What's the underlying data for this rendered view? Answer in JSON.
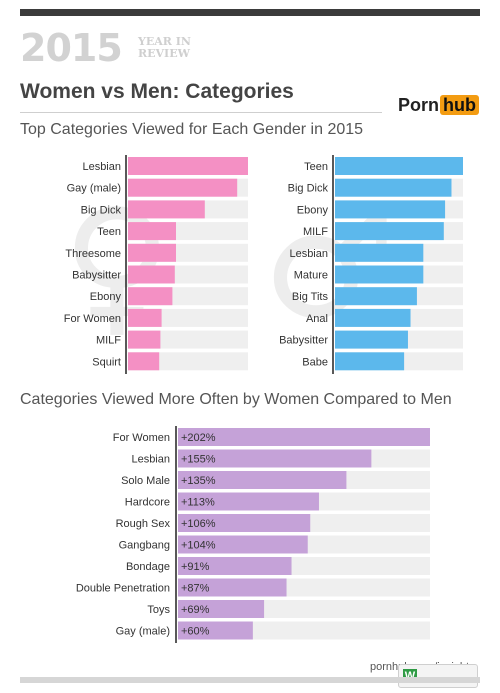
{
  "header": {
    "year": "2015",
    "year_in_review": "YEAR IN REVIEW",
    "title": "Women vs Men: Categories",
    "logo_a": "Porn",
    "logo_b": "hub",
    "brand_color": "#f39c12"
  },
  "section1": {
    "title": "Top Categories Viewed for Each Gender in 2015"
  },
  "section2": {
    "title": "Categories Viewed More Often by Women Compared to Men"
  },
  "footer": {
    "url": "pornhub.com/insights",
    "badge_text": "W"
  },
  "chart_data": [
    {
      "type": "bar",
      "orientation": "horizontal",
      "series_label_hint": "Women",
      "categories": [
        "Lesbian",
        "Gay (male)",
        "Big Dick",
        "Teen",
        "Threesome",
        "Babysitter",
        "Ebony",
        "For Women",
        "MILF",
        "Squirt"
      ],
      "values": [
        100,
        91,
        64,
        40,
        40,
        39,
        37,
        28,
        27,
        26
      ],
      "xlim": [
        0,
        100
      ],
      "color": "#f490c4",
      "track_color": "#efefef"
    },
    {
      "type": "bar",
      "orientation": "horizontal",
      "series_label_hint": "Men",
      "categories": [
        "Teen",
        "Big Dick",
        "Ebony",
        "MILF",
        "Lesbian",
        "Mature",
        "Big Tits",
        "Anal",
        "Babysitter",
        "Babe"
      ],
      "values": [
        100,
        91,
        86,
        85,
        69,
        69,
        64,
        59,
        57,
        54
      ],
      "xlim": [
        0,
        100
      ],
      "color": "#5cb8ec",
      "track_color": "#efefef"
    },
    {
      "type": "bar",
      "orientation": "horizontal",
      "categories": [
        "For Women",
        "Lesbian",
        "Solo Male",
        "Hardcore",
        "Rough Sex",
        "Gangbang",
        "Bondage",
        "Double Penetration",
        "Toys",
        "Gay (male)"
      ],
      "values": [
        202,
        155,
        135,
        113,
        106,
        104,
        91,
        87,
        69,
        60
      ],
      "labels": [
        "+202%",
        "+155%",
        "+135%",
        "+113%",
        "+106%",
        "+104%",
        "+91%",
        "+87%",
        "+69%",
        "+60%"
      ],
      "xlim": [
        0,
        202
      ],
      "color": "#c5a2d8",
      "track_color": "#efefef"
    }
  ]
}
